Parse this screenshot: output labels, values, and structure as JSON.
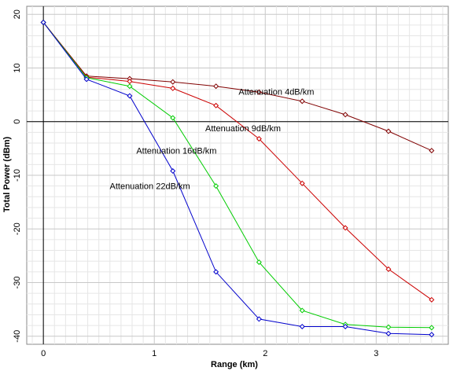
{
  "chart_data": {
    "type": "line",
    "title": "",
    "xlabel": "Range (km)",
    "ylabel": "Total Power (dBm)",
    "xlim": [
      -0.15,
      3.65
    ],
    "ylim": [
      -41.5,
      21.5
    ],
    "x_ticks": [
      0,
      1,
      2,
      3
    ],
    "y_ticks": [
      20,
      10,
      0,
      -10,
      -20,
      -30,
      -40
    ],
    "grid": true,
    "zero_line": true,
    "x": [
      0,
      0.389,
      0.778,
      1.167,
      1.556,
      1.944,
      2.333,
      2.722,
      3.111,
      3.5
    ],
    "series": [
      {
        "name": "Attenuation 4dB/km",
        "color": "#800000",
        "values": [
          18.5,
          8.5,
          8.0,
          7.4,
          6.6,
          5.5,
          3.8,
          1.3,
          -1.8,
          -5.4
        ]
      },
      {
        "name": "Attenuation 9dB/km",
        "color": "#cc0000",
        "values": [
          18.5,
          8.3,
          7.5,
          6.2,
          3.0,
          -3.2,
          -11.5,
          -19.8,
          -27.5,
          -33.2
        ]
      },
      {
        "name": "Attenuation 16dB/km",
        "color": "#00cc00",
        "values": [
          18.5,
          8.2,
          6.6,
          0.7,
          -12.0,
          -26.2,
          -35.2,
          -37.8,
          -38.3,
          -38.4
        ]
      },
      {
        "name": "Attenuation 22dB/km",
        "color": "#0000cc",
        "values": [
          18.5,
          7.9,
          4.8,
          -9.2,
          -28.0,
          -36.8,
          -38.2,
          -38.2,
          -39.5,
          -39.7
        ]
      }
    ]
  }
}
